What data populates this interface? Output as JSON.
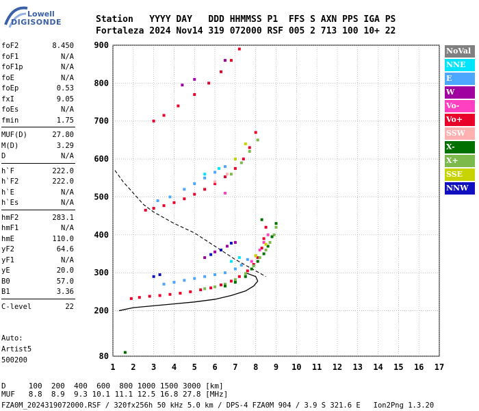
{
  "logo": {
    "line1": "Lowell",
    "line2": "DIGISONDE"
  },
  "header": {
    "labels": [
      "Station",
      "YYYY",
      "DAY",
      "DDD",
      "HHMMSS",
      "P1",
      "FFS",
      "S",
      "AXN",
      "PPS",
      "IGA",
      "PS"
    ],
    "values": [
      "Fortaleza",
      "2024",
      "Nov14",
      "319",
      "072000",
      "RSF",
      "005",
      "2",
      "713",
      "100",
      "10+",
      "22"
    ]
  },
  "params": [
    {
      "label": "foF2",
      "value": "8.450"
    },
    {
      "label": "foF1",
      "value": "N/A"
    },
    {
      "label": "foF1p",
      "value": "N/A"
    },
    {
      "label": "foE",
      "value": "N/A"
    },
    {
      "label": "foEp",
      "value": "0.53"
    },
    {
      "label": "fxI",
      "value": "9.05"
    },
    {
      "label": "foEs",
      "value": "N/A"
    },
    {
      "label": "fmin",
      "value": "1.75"
    },
    {
      "label": "MUF(D)",
      "value": "27.80"
    },
    {
      "label": "M(D)",
      "value": "3.29"
    },
    {
      "label": "D",
      "value": "N/A"
    },
    {
      "label": "h`F",
      "value": "222.0"
    },
    {
      "label": "h`F2",
      "value": "222.0"
    },
    {
      "label": "h`E",
      "value": "N/A"
    },
    {
      "label": "h`Es",
      "value": "N/A"
    },
    {
      "label": "hmF2",
      "value": "283.1"
    },
    {
      "label": "hmF1",
      "value": "N/A"
    },
    {
      "label": "hmE",
      "value": "110.0"
    },
    {
      "label": "yF2",
      "value": "64.6"
    },
    {
      "label": "yF1",
      "value": "N/A"
    },
    {
      "label": "yE",
      "value": "20.0"
    },
    {
      "label": "B0",
      "value": "57.0"
    },
    {
      "label": "B1",
      "value": "3.36"
    },
    {
      "label": "C-level",
      "value": "22"
    }
  ],
  "auto": {
    "line1": "Auto:",
    "line2": "Artist5",
    "line3": "500200"
  },
  "legend": [
    {
      "label": "NoVal",
      "color": "#808080"
    },
    {
      "label": "NNE",
      "color": "#00e5ff"
    },
    {
      "label": "E",
      "color": "#4da6ff"
    },
    {
      "label": "W",
      "color": "#a000a0"
    },
    {
      "label": "Vo-",
      "color": "#ff40c0"
    },
    {
      "label": "Vo+",
      "color": "#e8002a"
    },
    {
      "label": "SSW",
      "color": "#ffb0b0"
    },
    {
      "label": "X-",
      "color": "#007000"
    },
    {
      "label": "X+",
      "color": "#7cba4c"
    },
    {
      "label": "SSE",
      "color": "#c8d400"
    },
    {
      "label": "NNW",
      "color": "#1010c0"
    }
  ],
  "bottom": {
    "row1_label": "D",
    "row1_values": [
      "100",
      "200",
      "400",
      "600",
      "800",
      "1000",
      "1500",
      "3000",
      "[km]"
    ],
    "row2_label": "MUF",
    "row2_values": [
      "8.8",
      "8.9",
      "9.3",
      "10.1",
      "11.1",
      "12.5",
      "16.8",
      "27.8",
      "[MHz]"
    ]
  },
  "footer": "FZA0M_2024319072000.RSF / 320fx256h 50 kHz 5.0 km / DPS-4 FZA0M 904 / 3.9 S 321.6 E   Ion2Png 1.3.20",
  "chart_data": {
    "type": "scatter",
    "x_ticks": [
      1,
      2,
      3,
      4,
      5,
      6,
      7,
      8,
      9,
      10,
      11,
      12,
      13,
      14,
      15,
      16,
      17
    ],
    "y_ticks": [
      80,
      200,
      300,
      400,
      500,
      600,
      700,
      800,
      900
    ],
    "xlim": [
      1,
      17
    ],
    "ylim": [
      80,
      900
    ],
    "grid": true,
    "legend_position": "right",
    "series": [
      {
        "name": "Vo+",
        "color": "#e8002a",
        "points": [
          [
            1.9,
            232
          ],
          [
            2.3,
            235
          ],
          [
            2.8,
            238
          ],
          [
            3.3,
            240
          ],
          [
            3.8,
            243
          ],
          [
            4.3,
            246
          ],
          [
            4.8,
            250
          ],
          [
            5.3,
            255
          ],
          [
            5.8,
            260
          ],
          [
            6.3,
            268
          ],
          [
            6.8,
            278
          ],
          [
            7.2,
            290
          ],
          [
            7.6,
            305
          ],
          [
            7.9,
            322
          ],
          [
            8.1,
            340
          ],
          [
            8.3,
            365
          ],
          [
            8.4,
            390
          ],
          [
            8.5,
            420
          ],
          [
            2.6,
            465
          ],
          [
            3.0,
            470
          ],
          [
            3.5,
            477
          ],
          [
            4.0,
            485
          ],
          [
            4.5,
            495
          ],
          [
            5.0,
            507
          ],
          [
            5.5,
            520
          ],
          [
            6.0,
            535
          ],
          [
            6.5,
            553
          ],
          [
            7.0,
            575
          ],
          [
            7.4,
            600
          ],
          [
            7.7,
            630
          ],
          [
            8.0,
            670
          ],
          [
            3.0,
            700
          ],
          [
            3.5,
            715
          ],
          [
            4.2,
            740
          ],
          [
            5.0,
            770
          ],
          [
            5.7,
            800
          ],
          [
            6.3,
            830
          ],
          [
            6.8,
            860
          ],
          [
            7.2,
            890
          ]
        ]
      },
      {
        "name": "X+",
        "color": "#7cba4c",
        "points": [
          [
            5.5,
            258
          ],
          [
            6.0,
            263
          ],
          [
            6.5,
            270
          ],
          [
            7.0,
            282
          ],
          [
            7.5,
            298
          ],
          [
            7.9,
            318
          ],
          [
            8.2,
            340
          ],
          [
            8.5,
            360
          ],
          [
            8.7,
            380
          ],
          [
            8.9,
            400
          ],
          [
            9.0,
            420
          ],
          [
            6.8,
            560
          ],
          [
            7.3,
            590
          ],
          [
            7.7,
            620
          ],
          [
            8.1,
            650
          ]
        ]
      },
      {
        "name": "X-",
        "color": "#007000",
        "points": [
          [
            6.5,
            265
          ],
          [
            7.0,
            275
          ],
          [
            7.5,
            290
          ],
          [
            7.8,
            310
          ],
          [
            8.1,
            330
          ],
          [
            8.4,
            350
          ],
          [
            8.6,
            370
          ],
          [
            8.8,
            395
          ],
          [
            9.0,
            430
          ],
          [
            8.3,
            440
          ],
          [
            1.6,
            90
          ]
        ]
      },
      {
        "name": "E",
        "color": "#4da6ff",
        "points": [
          [
            3.5,
            270
          ],
          [
            4.0,
            275
          ],
          [
            4.5,
            280
          ],
          [
            5.0,
            285
          ],
          [
            5.5,
            290
          ],
          [
            6.0,
            295
          ],
          [
            6.5,
            300
          ],
          [
            7.0,
            310
          ],
          [
            7.3,
            320
          ],
          [
            7.6,
            335
          ],
          [
            4.5,
            520
          ],
          [
            5.0,
            535
          ],
          [
            5.5,
            550
          ],
          [
            6.0,
            565
          ],
          [
            6.5,
            580
          ],
          [
            7.0,
            600
          ],
          [
            3.2,
            490
          ],
          [
            3.8,
            500
          ]
        ]
      },
      {
        "name": "NNE",
        "color": "#00e5ff",
        "points": [
          [
            6.8,
            330
          ],
          [
            7.2,
            340
          ],
          [
            5.5,
            560
          ],
          [
            6.2,
            575
          ]
        ]
      },
      {
        "name": "Vo-",
        "color": "#ff40c0",
        "points": [
          [
            7.8,
            330
          ],
          [
            8.0,
            345
          ],
          [
            8.2,
            360
          ],
          [
            8.4,
            380
          ],
          [
            8.6,
            400
          ],
          [
            6.5,
            510
          ]
        ]
      },
      {
        "name": "W",
        "color": "#a000a0",
        "points": [
          [
            5.5,
            340
          ],
          [
            6.0,
            355
          ],
          [
            6.6,
            370
          ],
          [
            7.0,
            380
          ],
          [
            4.4,
            795
          ],
          [
            5.0,
            810
          ],
          [
            6.5,
            860
          ]
        ]
      },
      {
        "name": "NNW",
        "color": "#1010c0",
        "points": [
          [
            3.0,
            290
          ],
          [
            3.3,
            295
          ],
          [
            5.8,
            348
          ],
          [
            6.3,
            360
          ],
          [
            6.8,
            378
          ]
        ]
      },
      {
        "name": "SSE",
        "color": "#c8d400",
        "points": [
          [
            8.0,
            345
          ],
          [
            8.5,
            375
          ],
          [
            7.0,
            600
          ],
          [
            7.5,
            640
          ]
        ]
      },
      {
        "name": "SSW",
        "color": "#ffb0b0",
        "points": [
          [
            6.0,
            540
          ],
          [
            6.6,
            560
          ]
        ]
      }
    ],
    "profile_line": {
      "points": [
        [
          1.3,
          200
        ],
        [
          2.0,
          208
        ],
        [
          3.0,
          213
        ],
        [
          4.0,
          218
        ],
        [
          5.0,
          223
        ],
        [
          6.0,
          230
        ],
        [
          6.8,
          240
        ],
        [
          7.5,
          252
        ],
        [
          7.9,
          265
        ],
        [
          8.1,
          278
        ],
        [
          8.0,
          290
        ],
        [
          7.5,
          300
        ]
      ]
    },
    "dashed_line": {
      "points": [
        [
          1.1,
          570
        ],
        [
          1.5,
          540
        ],
        [
          2.0,
          510
        ],
        [
          2.5,
          480
        ],
        [
          3.0,
          460
        ],
        [
          4.0,
          430
        ],
        [
          5.0,
          405
        ],
        [
          6.0,
          370
        ],
        [
          7.0,
          335
        ],
        [
          8.0,
          305
        ],
        [
          8.5,
          290
        ]
      ]
    }
  }
}
